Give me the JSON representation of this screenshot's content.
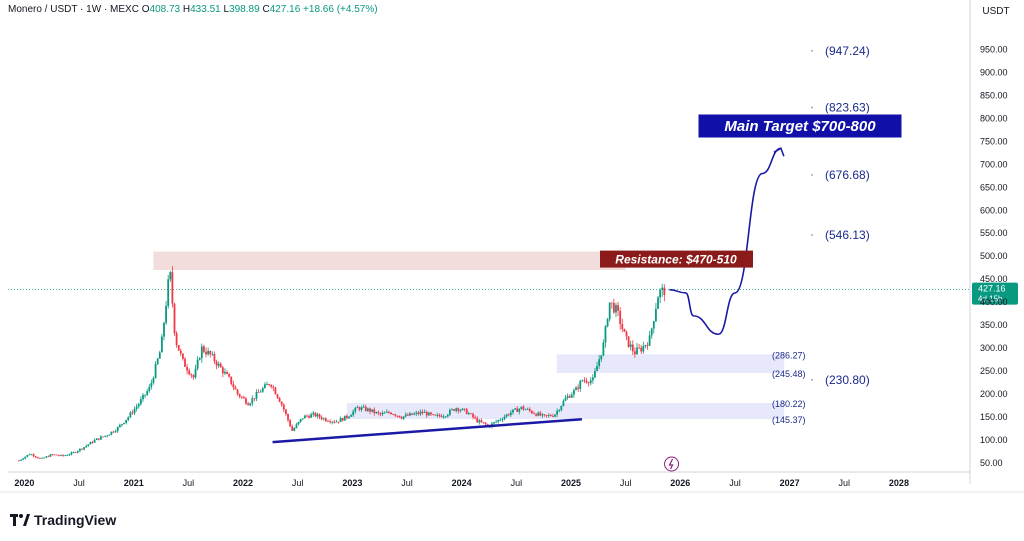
{
  "header": {
    "symbol": "Monero / USDT · 1W · MEXC",
    "open_label": "O",
    "open": "408.73",
    "high_label": "H",
    "high": "433.51",
    "low_label": "L",
    "low": "398.89",
    "close_label": "C",
    "close": "427.16",
    "change": "+18.66 (+4.57%)"
  },
  "axis_unit": "USDT",
  "price_tag": {
    "price": "427.16",
    "countdown": "4d 15h"
  },
  "brand": "TradingView",
  "colors": {
    "up": "#089981",
    "down": "#f23645",
    "trend": "#1a1aa6",
    "zone": "#e8e8fb",
    "resistance": "#f3dcdc",
    "annotation": "#1a2a8c"
  },
  "chart_data": {
    "type": "candlestick",
    "y_ticks": [
      "50.00",
      "100.00",
      "150.00",
      "200.00",
      "250.00",
      "300.00",
      "350.00",
      "400.00",
      "450.00",
      "500.00",
      "550.00",
      "600.00",
      "650.00",
      "700.00",
      "750.00",
      "800.00",
      "850.00",
      "900.00",
      "950.00"
    ],
    "y_range": [
      30,
      1010
    ],
    "x_ticks": [
      "2020",
      "Jul",
      "2021",
      "Jul",
      "2022",
      "Jul",
      "2023",
      "Jul",
      "2024",
      "Jul",
      "2025",
      "Jul",
      "2026",
      "Jul",
      "2027",
      "Jul",
      "2028"
    ],
    "x_range": [
      2019.85,
      2028.65
    ],
    "series": [
      [
        2019.95,
        55
      ],
      [
        2020.05,
        70
      ],
      [
        2020.15,
        58
      ],
      [
        2020.25,
        68
      ],
      [
        2020.35,
        65
      ],
      [
        2020.45,
        72
      ],
      [
        2020.55,
        85
      ],
      [
        2020.65,
        100
      ],
      [
        2020.75,
        110
      ],
      [
        2020.85,
        125
      ],
      [
        2020.95,
        150
      ],
      [
        2021.05,
        180
      ],
      [
        2021.15,
        215
      ],
      [
        2021.25,
        300
      ],
      [
        2021.33,
        470
      ],
      [
        2021.38,
        320
      ],
      [
        2021.45,
        270
      ],
      [
        2021.55,
        235
      ],
      [
        2021.62,
        300
      ],
      [
        2021.7,
        285
      ],
      [
        2021.8,
        255
      ],
      [
        2021.88,
        230
      ],
      [
        2021.95,
        200
      ],
      [
        2022.05,
        180
      ],
      [
        2022.15,
        205
      ],
      [
        2022.25,
        225
      ],
      [
        2022.35,
        180
      ],
      [
        2022.45,
        120
      ],
      [
        2022.55,
        150
      ],
      [
        2022.65,
        155
      ],
      [
        2022.75,
        145
      ],
      [
        2022.85,
        140
      ],
      [
        2022.95,
        150
      ],
      [
        2023.05,
        170
      ],
      [
        2023.15,
        165
      ],
      [
        2023.25,
        155
      ],
      [
        2023.35,
        160
      ],
      [
        2023.45,
        150
      ],
      [
        2023.55,
        155
      ],
      [
        2023.65,
        160
      ],
      [
        2023.75,
        150
      ],
      [
        2023.85,
        155
      ],
      [
        2023.95,
        170
      ],
      [
        2024.05,
        160
      ],
      [
        2024.15,
        140
      ],
      [
        2024.25,
        130
      ],
      [
        2024.35,
        145
      ],
      [
        2024.45,
        160
      ],
      [
        2024.55,
        170
      ],
      [
        2024.65,
        160
      ],
      [
        2024.75,
        150
      ],
      [
        2024.85,
        155
      ],
      [
        2024.95,
        190
      ],
      [
        2025.05,
        210
      ],
      [
        2025.1,
        230
      ],
      [
        2025.2,
        230
      ],
      [
        2025.3,
        310
      ],
      [
        2025.35,
        400
      ],
      [
        2025.42,
        380
      ],
      [
        2025.5,
        320
      ],
      [
        2025.58,
        290
      ],
      [
        2025.65,
        300
      ],
      [
        2025.72,
        320
      ],
      [
        2025.8,
        420
      ],
      [
        2025.87,
        427.16
      ]
    ],
    "trendline": [
      [
        2022.27,
        95
      ],
      [
        2025.1,
        145
      ]
    ],
    "resistance_zone": [
      470,
      510
    ],
    "zones": [
      [
        245.48,
        286.27
      ],
      [
        145.37,
        180.22
      ]
    ],
    "annotations": [
      {
        "label": "Resistance: $470-510"
      },
      {
        "label": "Main Target $700-800"
      }
    ],
    "levels": [
      {
        "label": "(947.24)",
        "value": 947.24
      },
      {
        "label": "(823.63)",
        "value": 823.63
      },
      {
        "label": "(676.68)",
        "value": 676.68
      },
      {
        "label": "(546.13)",
        "value": 546.13
      },
      {
        "label": "(286.27)",
        "value": 286.27
      },
      {
        "label": "(245.48)",
        "value": 245.48
      },
      {
        "label": "(230.80)",
        "value": 230.8
      },
      {
        "label": "(180.22)",
        "value": 180.22
      },
      {
        "label": "(145.37)",
        "value": 145.37
      }
    ],
    "projection": [
      [
        2025.9,
        427
      ],
      [
        2026.05,
        420
      ],
      [
        2026.12,
        370
      ],
      [
        2026.35,
        330
      ],
      [
        2026.5,
        420
      ],
      [
        2026.75,
        680
      ],
      [
        2026.92,
        735
      ]
    ]
  }
}
